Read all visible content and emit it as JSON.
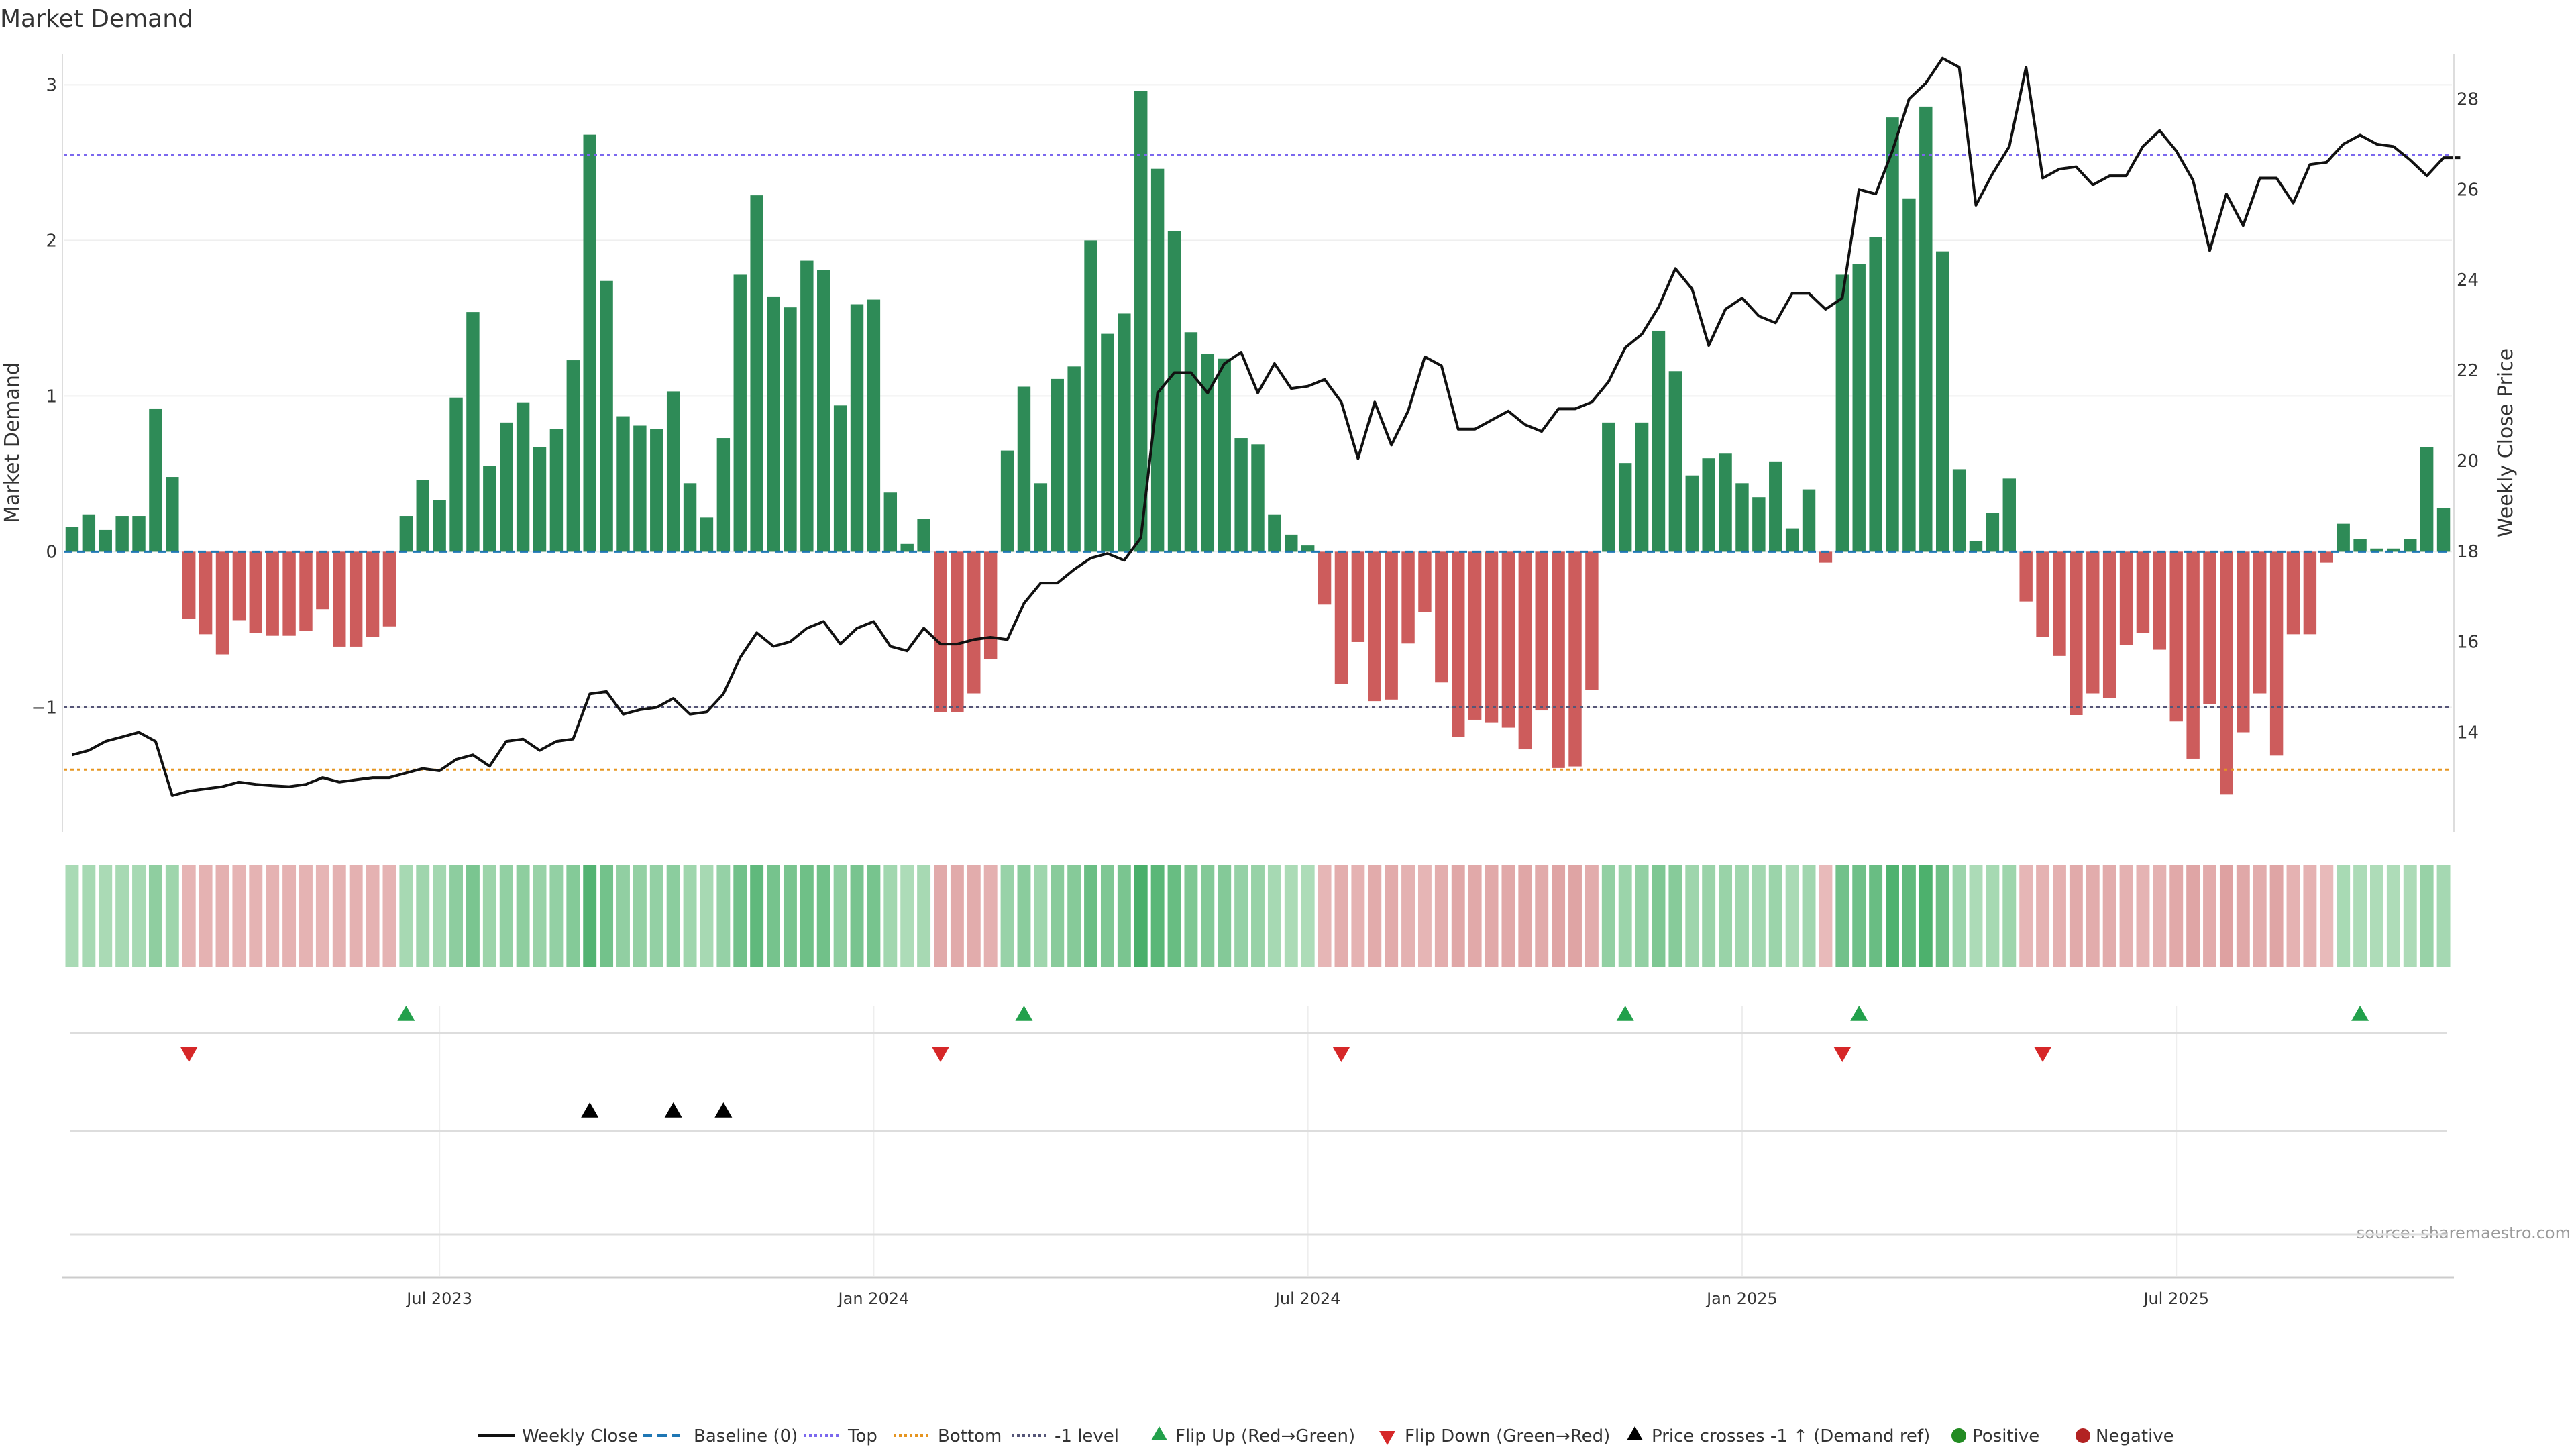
{
  "chart_data": {
    "type": "bar",
    "title": "Market Demand",
    "ylabel": "Market Demand",
    "y2label": "Weekly Close Price",
    "source": "source: sharemaestro.com",
    "ylim": [
      -1.8,
      3.2
    ],
    "y_ticks": [
      {
        "v": 3,
        "label": "3"
      },
      {
        "v": 2,
        "label": "2"
      },
      {
        "v": 1,
        "label": "1"
      },
      {
        "v": 0,
        "label": "0"
      },
      {
        "v": -1,
        "label": "−1"
      }
    ],
    "y2lim": [
      11.8,
      29.0
    ],
    "y2_ticks": [
      14,
      16,
      18,
      20,
      22,
      24,
      26,
      28
    ],
    "x_ticks": [
      {
        "i": 22,
        "label": "Jul 2023"
      },
      {
        "i": 48,
        "label": "Jan 2024"
      },
      {
        "i": 74,
        "label": "Jul 2024"
      },
      {
        "i": 100,
        "label": "Jan 2025"
      },
      {
        "i": 126,
        "label": "Jul 2025"
      }
    ],
    "reference_lines": {
      "top": 2.55,
      "bottom": -1.4,
      "minus_one": -1.0,
      "baseline": 0
    },
    "colors": {
      "positive": "#2e8b57",
      "negative": "#cd5c5c",
      "close": "#111111",
      "baseline": "#1f77b4",
      "top": "#7b68ee",
      "bottom": "#e69520",
      "minus_one": "#555577",
      "flip_up": "#22a04b",
      "flip_down": "#d62728",
      "cross": "#000000",
      "positive_dot": "#228b22",
      "negative_dot": "#b22222"
    },
    "demand": [
      0.16,
      0.24,
      0.14,
      0.23,
      0.23,
      0.92,
      0.48,
      -0.43,
      -0.53,
      -0.66,
      -0.44,
      -0.52,
      -0.54,
      -0.54,
      -0.51,
      -0.37,
      -0.61,
      -0.61,
      -0.55,
      -0.48,
      0.23,
      0.46,
      0.33,
      0.99,
      1.54,
      0.55,
      0.83,
      0.96,
      0.67,
      0.79,
      1.23,
      2.68,
      1.74,
      0.87,
      0.81,
      0.79,
      1.03,
      0.44,
      0.22,
      0.73,
      1.78,
      2.29,
      1.64,
      1.57,
      1.87,
      1.81,
      0.94,
      1.59,
      1.62,
      0.38,
      0.05,
      0.21,
      -1.03,
      -1.03,
      -0.91,
      -0.69,
      0.65,
      1.06,
      0.44,
      1.11,
      1.19,
      2.0,
      1.4,
      1.53,
      2.96,
      2.46,
      2.06,
      1.41,
      1.27,
      1.24,
      0.73,
      0.69,
      0.24,
      0.11,
      0.04,
      -0.34,
      -0.85,
      -0.58,
      -0.96,
      -0.95,
      -0.59,
      -0.39,
      -0.84,
      -1.19,
      -1.08,
      -1.1,
      -1.13,
      -1.27,
      -1.02,
      -1.39,
      -1.38,
      -0.89,
      0.83,
      0.57,
      0.83,
      1.42,
      1.16,
      0.49,
      0.6,
      0.63,
      0.44,
      0.35,
      0.58,
      0.15,
      0.4,
      -0.07,
      1.78,
      1.85,
      2.02,
      2.79,
      2.27,
      2.86,
      1.93,
      0.53,
      0.07,
      0.25,
      0.47,
      -0.32,
      -0.55,
      -0.67,
      -1.05,
      -0.91,
      -0.94,
      -0.6,
      -0.52,
      -0.63,
      -1.09,
      -1.33,
      -0.98,
      -1.56,
      -1.16,
      -0.91,
      -1.31,
      -0.53,
      -0.53,
      -0.07,
      0.18,
      0.08,
      0.02,
      0.02,
      0.08,
      0.67,
      0.28
    ],
    "close": [
      13.5,
      13.6,
      13.8,
      13.9,
      14.0,
      13.8,
      12.6,
      12.7,
      12.75,
      12.8,
      12.9,
      12.85,
      12.82,
      12.8,
      12.85,
      13.0,
      12.9,
      12.95,
      13.0,
      13.0,
      13.1,
      13.2,
      13.15,
      13.4,
      13.5,
      13.25,
      13.8,
      13.85,
      13.6,
      13.8,
      13.85,
      14.85,
      14.9,
      14.4,
      14.5,
      14.55,
      14.75,
      14.4,
      14.45,
      14.85,
      15.65,
      16.2,
      15.9,
      16.0,
      16.3,
      16.45,
      15.95,
      16.3,
      16.45,
      15.9,
      15.8,
      16.3,
      15.95,
      15.95,
      16.05,
      16.1,
      16.05,
      16.85,
      17.3,
      17.3,
      17.6,
      17.85,
      17.95,
      17.8,
      18.3,
      21.5,
      21.95,
      21.95,
      21.5,
      22.15,
      22.4,
      21.5,
      22.15,
      21.6,
      21.65,
      21.8,
      21.3,
      20.05,
      21.3,
      20.35,
      21.1,
      22.3,
      22.1,
      20.7,
      20.7,
      20.9,
      21.1,
      20.8,
      20.65,
      21.15,
      21.15,
      21.3,
      21.75,
      22.5,
      22.8,
      23.4,
      24.25,
      23.8,
      22.55,
      23.35,
      23.6,
      23.2,
      23.05,
      23.7,
      23.7,
      23.35,
      23.6,
      26.0,
      25.9,
      26.85,
      28.0,
      28.35,
      28.9,
      28.7,
      25.65,
      26.35,
      26.95,
      28.7,
      26.25,
      26.45,
      26.5,
      26.1,
      26.3,
      26.3,
      26.95,
      27.3,
      26.85,
      26.2,
      24.65,
      25.9,
      25.2,
      26.25,
      26.25,
      25.7,
      26.55,
      26.6,
      27.0,
      27.2,
      27.0,
      26.95,
      26.65,
      26.3,
      26.7,
      26.7
    ],
    "flip_up_at": [
      20,
      57,
      93,
      107,
      137
    ],
    "flip_down_at": [
      7,
      52,
      76,
      106,
      118
    ],
    "price_cross_at": [
      31,
      36,
      39
    ],
    "legend": [
      {
        "key": "close",
        "label": "Weekly Close",
        "style": "line"
      },
      {
        "key": "baseline",
        "label": "Baseline (0)",
        "style": "dashed"
      },
      {
        "key": "top",
        "label": "Top",
        "style": "dotted"
      },
      {
        "key": "bottom",
        "label": "Bottom",
        "style": "dotted"
      },
      {
        "key": "minus_one",
        "label": "-1 level",
        "style": "dotted"
      },
      {
        "key": "flip_up",
        "label": "Flip Up (Red→Green)",
        "style": "tri-up"
      },
      {
        "key": "flip_down",
        "label": "Flip Down (Green→Red)",
        "style": "tri-down"
      },
      {
        "key": "cross",
        "label": "Price crosses -1 ↑ (Demand ref)",
        "style": "tri-up"
      },
      {
        "key": "positive_dot",
        "label": "Positive",
        "style": "dot"
      },
      {
        "key": "negative_dot",
        "label": "Negative",
        "style": "dot"
      }
    ]
  }
}
